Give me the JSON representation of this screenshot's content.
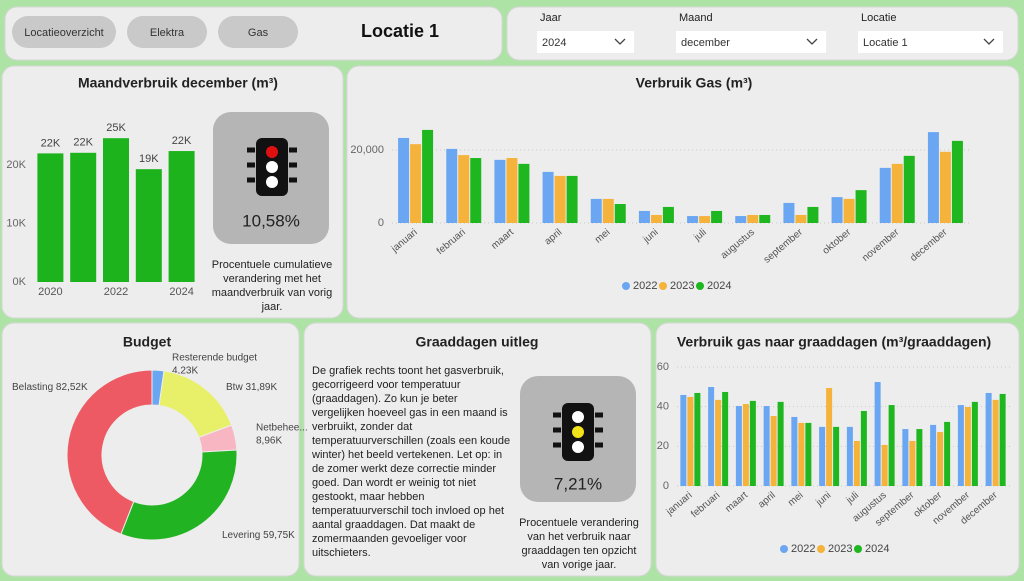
{
  "header": {
    "buttons": [
      "Locatieoverzicht",
      "Elektra",
      "Gas"
    ],
    "title": "Locatie 1"
  },
  "filters": [
    {
      "label": "Jaar",
      "value": "2024"
    },
    {
      "label": "Maand",
      "value": "december"
    },
    {
      "label": "Locatie",
      "value": "Locatie 1"
    }
  ],
  "kpis": [
    {
      "value": "10,58%",
      "caption": "Procentuele cumulatieve verandering met het maandverbruik van vorig jaar."
    },
    {
      "value": "7,21%",
      "caption": "Procentuele verandering van het verbruik naar graaddagen ten opzicht van vorige jaar."
    }
  ],
  "explanation": {
    "title": "Graaddagen uitleg",
    "text": "De grafiek rechts toont het gasverbruik, gecorrigeerd voor temperatuur (graaddagen). Zo kun je beter vergelijken hoeveel gas in een maand is verbruikt, zonder dat temperatuurverschillen (zoals een koude winter) het beeld vertekenen. Let op: in de zomer werkt deze correctie minder goed. Dan wordt er weinig tot niet gestookt, maar hebben temperatuurverschil toch invloed op het aantal graaddagen. Dat maakt de zomermaanden gevoeliger voor uitschieters."
  },
  "chart_data": [
    {
      "type": "bar",
      "title": "Maandverbruik december (m³)",
      "categories": [
        "2020",
        null,
        "2022",
        null,
        "2024"
      ],
      "values": [
        22000,
        22100,
        24600,
        19300,
        22400
      ],
      "value_labels": [
        "22K",
        "22K",
        "25K",
        "19K",
        "22K"
      ],
      "color": "#1db31d",
      "ylim": [
        0,
        26000
      ],
      "yticks": [
        {
          "value": 0,
          "label": "0K"
        },
        {
          "value": 10000,
          "label": "10K"
        },
        {
          "value": 20000,
          "label": "20K"
        }
      ],
      "grid": false
    },
    {
      "type": "bar",
      "title": "Verbruik Gas (m³)",
      "categories": [
        "januari",
        "februari",
        "maart",
        "april",
        "mei",
        "juni",
        "juli",
        "augustus",
        "september",
        "oktober",
        "november",
        "december"
      ],
      "series": [
        {
          "name": "2022",
          "color": "#6aa6f2",
          "values": [
            23300,
            20300,
            17300,
            14000,
            6600,
            3300,
            1900,
            1900,
            5500,
            7100,
            15100,
            24900
          ]
        },
        {
          "name": "2023",
          "color": "#f5b33b",
          "values": [
            21600,
            18600,
            17800,
            12900,
            6600,
            2200,
            1900,
            2200,
            2200,
            6600,
            16200,
            19500
          ]
        },
        {
          "name": "2024",
          "color": "#1fb71f",
          "values": [
            25500,
            17800,
            16200,
            12900,
            5200,
            4400,
            3300,
            2200,
            4400,
            9000,
            18400,
            22500
          ]
        }
      ],
      "ylim": [
        0,
        28000
      ],
      "yticks": [
        0,
        {
          "value": 20000,
          "label": "20,000"
        }
      ],
      "grid": true
    },
    {
      "type": "pie",
      "title": "Budget",
      "donut": true,
      "categories": [
        "Resterende budget",
        "Btw",
        "Netbehee...",
        "Levering",
        "Belasting"
      ],
      "values": [
        4230,
        31890,
        8960,
        59750,
        82520
      ],
      "value_labels": [
        "4,23K",
        "31,89K",
        "8,96K",
        "59,75K",
        "82,52K"
      ],
      "colors": [
        "#6aa6f2",
        "#e8f06a",
        "#f7b6c2",
        "#22b322",
        "#ee5a64"
      ]
    },
    {
      "type": "bar",
      "title": "Verbruik gas naar graaddagen (m³/graaddagen)",
      "categories": [
        "januari",
        "februari",
        "maart",
        "april",
        "mei",
        "juni",
        "juli",
        "augustus",
        "september",
        "oktober",
        "november",
        "december"
      ],
      "series": [
        {
          "name": "2022",
          "color": "#6aa6f2",
          "values": [
            45.9,
            49.9,
            40.3,
            40.3,
            34.8,
            29.8,
            29.8,
            52.4,
            28.7,
            30.8,
            40.8,
            46.9
          ]
        },
        {
          "name": "2023",
          "color": "#f5b33b",
          "values": [
            44.9,
            43.4,
            41.3,
            35.3,
            31.8,
            49.4,
            22.7,
            20.7,
            22.7,
            27.2,
            39.8,
            43.4
          ]
        },
        {
          "name": "2024",
          "color": "#1fb71f",
          "values": [
            46.9,
            47.4,
            42.9,
            42.4,
            31.8,
            29.8,
            37.8,
            40.8,
            28.7,
            32.3,
            42.4,
            46.4
          ]
        }
      ],
      "ylim": [
        0,
        62
      ],
      "yticks": [
        0,
        20,
        40,
        60
      ],
      "grid": true
    }
  ]
}
